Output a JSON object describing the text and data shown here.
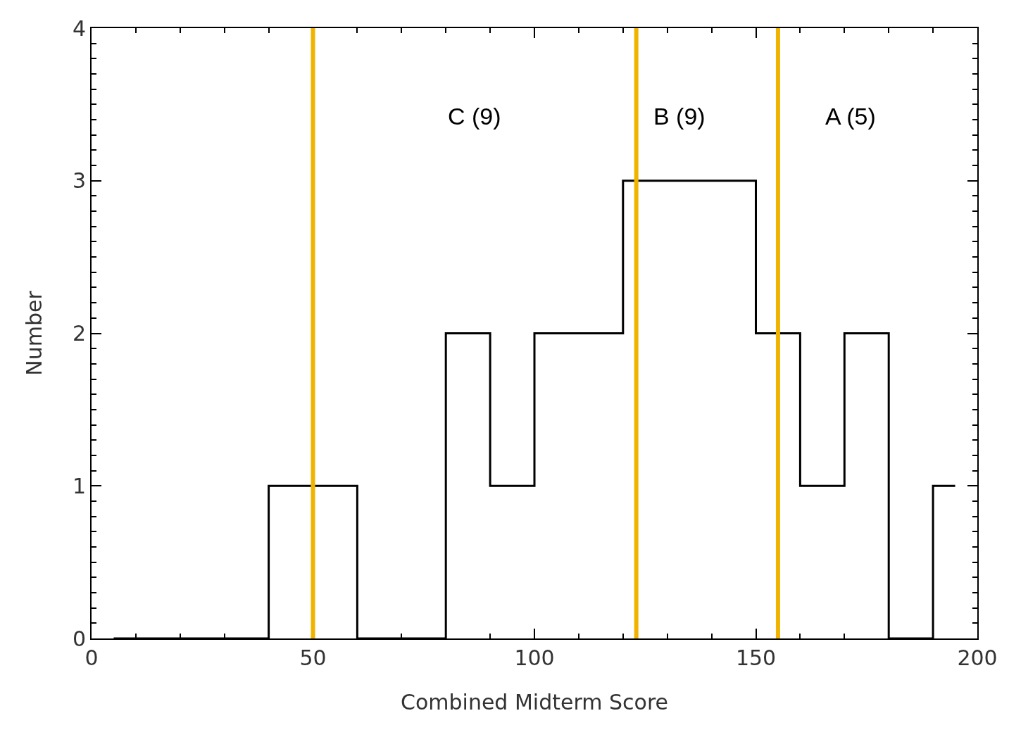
{
  "chart_data": {
    "type": "histogram",
    "xlabel": "Combined Midterm Score",
    "ylabel": "Number",
    "bins": [
      5,
      40,
      60,
      80,
      90,
      100,
      120,
      150,
      160,
      170,
      180,
      190,
      195
    ],
    "values": [
      0,
      1,
      0,
      2,
      1,
      2,
      3,
      2,
      1,
      2,
      0,
      1
    ],
    "color": "#000000",
    "xlim": [
      0,
      200
    ],
    "xticks": [
      0,
      50,
      100,
      150,
      200
    ],
    "ylim": [
      0,
      4
    ],
    "yticks": [
      0,
      1,
      2,
      3,
      4
    ],
    "grid": false,
    "ref_lines": [
      {
        "axis": "x",
        "value": 50,
        "color": "#f0b400"
      },
      {
        "axis": "x",
        "value": 123,
        "color": "#f0b400"
      },
      {
        "axis": "x",
        "value": 155,
        "color": "#f0b400"
      }
    ],
    "annotations": [
      "C (9)",
      "B (9)",
      "A (5)"
    ]
  }
}
